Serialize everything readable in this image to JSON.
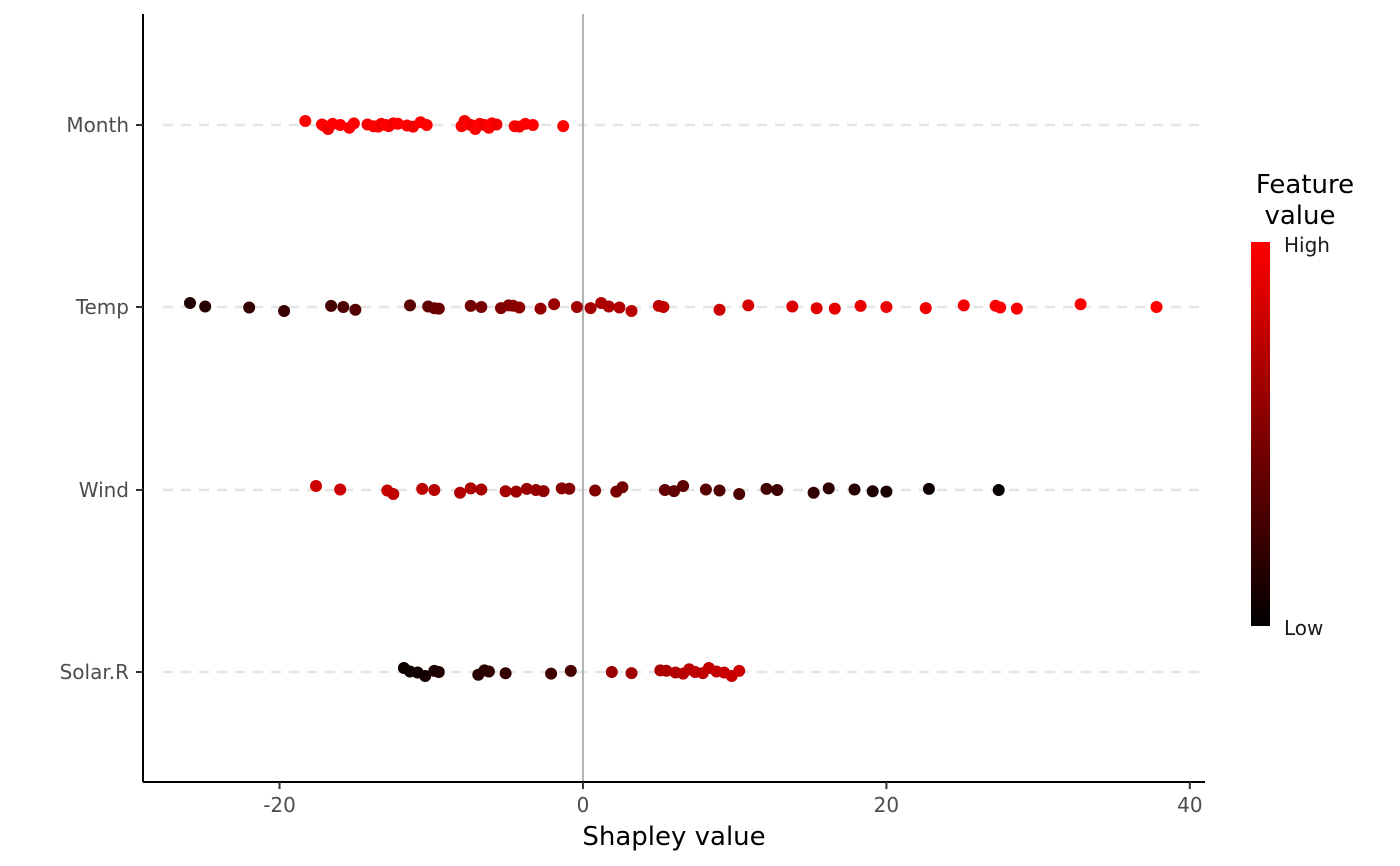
{
  "chart_data": {
    "type": "scatter",
    "xlabel": "Shapley value",
    "ylabel": "",
    "xlim": [
      -29,
      41
    ],
    "x_ticks": [
      -20,
      0,
      20,
      40
    ],
    "x_tick_labels": [
      "-20",
      "0",
      "20",
      "40"
    ],
    "categories": [
      "Month",
      "Temp",
      "Wind",
      "Solar.R"
    ],
    "grid": "dashed horizontal at each category",
    "zero_line": 0,
    "legend": {
      "title_lines": [
        "Feature",
        "value"
      ],
      "high_label": "High",
      "low_label": "Low",
      "high_color": "#ff0000",
      "low_color": "#000000",
      "placement": "right"
    },
    "series": [
      {
        "category": "Month",
        "points": [
          [
            -18.3,
            1.0
          ],
          [
            -17.2,
            0.95
          ],
          [
            -17.1,
            1.0
          ],
          [
            -16.8,
            0.95
          ],
          [
            -16.5,
            1.0
          ],
          [
            -16.0,
            1.0
          ],
          [
            -15.4,
            1.0
          ],
          [
            -15.1,
            1.0
          ],
          [
            -14.2,
            0.95
          ],
          [
            -13.8,
            1.0
          ],
          [
            -13.5,
            1.0
          ],
          [
            -13.3,
            0.95
          ],
          [
            -13.0,
            1.0
          ],
          [
            -12.8,
            1.0
          ],
          [
            -12.5,
            0.95
          ],
          [
            -12.2,
            1.0
          ],
          [
            -11.6,
            1.0
          ],
          [
            -11.2,
            0.95
          ],
          [
            -10.7,
            1.0
          ],
          [
            -10.3,
            1.0
          ],
          [
            -8.0,
            1.0
          ],
          [
            -7.8,
            0.95
          ],
          [
            -7.5,
            1.0
          ],
          [
            -7.3,
            0.95
          ],
          [
            -7.1,
            1.0
          ],
          [
            -6.8,
            1.0
          ],
          [
            -6.5,
            0.95
          ],
          [
            -6.2,
            1.0
          ],
          [
            -6.0,
            1.0
          ],
          [
            -5.7,
            0.95
          ],
          [
            -4.5,
            1.0
          ],
          [
            -4.2,
            0.95
          ],
          [
            -3.8,
            1.0
          ],
          [
            -3.3,
            1.0
          ],
          [
            -1.3,
            1.0
          ]
        ]
      },
      {
        "category": "Temp",
        "points": [
          [
            -25.9,
            0.12
          ],
          [
            -24.9,
            0.15
          ],
          [
            -22.0,
            0.2
          ],
          [
            -19.7,
            0.22
          ],
          [
            -16.6,
            0.28
          ],
          [
            -15.8,
            0.3
          ],
          [
            -15.0,
            0.32
          ],
          [
            -11.4,
            0.35
          ],
          [
            -10.2,
            0.38
          ],
          [
            -9.8,
            0.4
          ],
          [
            -9.5,
            0.42
          ],
          [
            -7.4,
            0.45
          ],
          [
            -6.7,
            0.47
          ],
          [
            -5.4,
            0.5
          ],
          [
            -4.9,
            0.52
          ],
          [
            -4.6,
            0.53
          ],
          [
            -4.2,
            0.55
          ],
          [
            -2.8,
            0.58
          ],
          [
            -1.9,
            0.6
          ],
          [
            -0.4,
            0.63
          ],
          [
            0.5,
            0.65
          ],
          [
            1.2,
            0.67
          ],
          [
            1.7,
            0.68
          ],
          [
            2.4,
            0.7
          ],
          [
            3.2,
            0.72
          ],
          [
            5.0,
            0.75
          ],
          [
            5.3,
            0.76
          ],
          [
            9.0,
            0.8
          ],
          [
            10.9,
            0.83
          ],
          [
            13.8,
            0.86
          ],
          [
            15.4,
            0.88
          ],
          [
            16.6,
            0.9
          ],
          [
            18.3,
            0.91
          ],
          [
            20.0,
            0.93
          ],
          [
            22.6,
            0.95
          ],
          [
            25.1,
            0.96
          ],
          [
            27.2,
            0.97
          ],
          [
            27.5,
            0.98
          ],
          [
            28.6,
            0.98
          ],
          [
            32.8,
            0.99
          ],
          [
            37.8,
            1.0
          ]
        ]
      },
      {
        "category": "Wind",
        "points": [
          [
            -17.6,
            0.82
          ],
          [
            -16.0,
            0.8
          ],
          [
            -12.9,
            0.78
          ],
          [
            -12.5,
            0.76
          ],
          [
            -10.6,
            0.74
          ],
          [
            -9.8,
            0.72
          ],
          [
            -8.1,
            0.7
          ],
          [
            -7.4,
            0.68
          ],
          [
            -6.7,
            0.66
          ],
          [
            -5.1,
            0.64
          ],
          [
            -4.4,
            0.62
          ],
          [
            -3.7,
            0.6
          ],
          [
            -3.1,
            0.58
          ],
          [
            -2.6,
            0.56
          ],
          [
            -1.4,
            0.54
          ],
          [
            -0.9,
            0.52
          ],
          [
            0.8,
            0.5
          ],
          [
            2.2,
            0.48
          ],
          [
            2.6,
            0.46
          ],
          [
            5.4,
            0.4
          ],
          [
            6.0,
            0.38
          ],
          [
            6.6,
            0.36
          ],
          [
            8.1,
            0.34
          ],
          [
            9.0,
            0.32
          ],
          [
            10.3,
            0.3
          ],
          [
            12.1,
            0.26
          ],
          [
            12.8,
            0.24
          ],
          [
            15.2,
            0.2
          ],
          [
            16.2,
            0.18
          ],
          [
            17.9,
            0.15
          ],
          [
            19.1,
            0.12
          ],
          [
            20.0,
            0.1
          ],
          [
            22.8,
            0.05
          ],
          [
            27.4,
            0.02
          ]
        ]
      },
      {
        "category": "Solar.R",
        "points": [
          [
            -11.8,
            0.05
          ],
          [
            -11.4,
            0.06
          ],
          [
            -10.9,
            0.07
          ],
          [
            -10.4,
            0.08
          ],
          [
            -9.8,
            0.1
          ],
          [
            -9.5,
            0.12
          ],
          [
            -6.9,
            0.15
          ],
          [
            -6.5,
            0.17
          ],
          [
            -6.2,
            0.18
          ],
          [
            -5.1,
            0.2
          ],
          [
            -2.1,
            0.25
          ],
          [
            -0.8,
            0.28
          ],
          [
            1.9,
            0.6
          ],
          [
            3.2,
            0.62
          ],
          [
            5.1,
            0.66
          ],
          [
            5.5,
            0.68
          ],
          [
            6.1,
            0.7
          ],
          [
            6.6,
            0.72
          ],
          [
            7.0,
            0.73
          ],
          [
            7.4,
            0.74
          ],
          [
            7.9,
            0.75
          ],
          [
            8.3,
            0.76
          ],
          [
            8.8,
            0.77
          ],
          [
            9.3,
            0.78
          ],
          [
            9.8,
            0.79
          ],
          [
            10.3,
            0.8
          ]
        ]
      }
    ]
  }
}
